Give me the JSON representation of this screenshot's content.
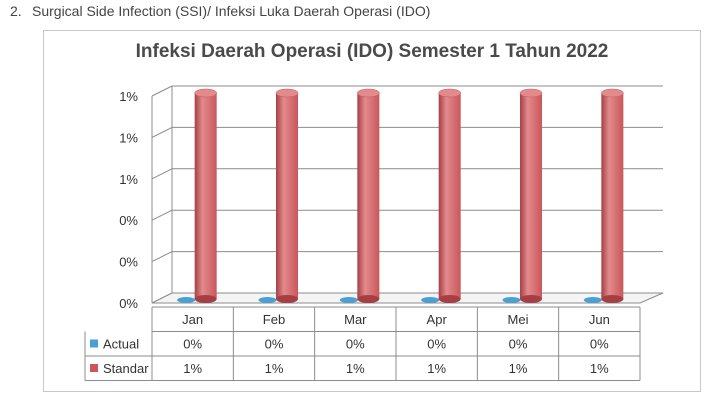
{
  "heading": {
    "number": "2.",
    "text": "Surgical Side Infection (SSI)/ Infeksi Luka Daerah Operasi (IDO)"
  },
  "colors": {
    "actual": "#4a9fd4",
    "standar": "#c9575b",
    "standar_light": "#e28a8c",
    "standar_dark": "#a53f44"
  },
  "chart_data": {
    "type": "bar",
    "title": "Infeksi Daerah Operasi (IDO) Semester 1 Tahun 2022",
    "categories": [
      "Jan",
      "Feb",
      "Mar",
      "Apr",
      "Mei",
      "Jun"
    ],
    "yticks": [
      "0%",
      "0%",
      "0%",
      "1%",
      "1%",
      "1%"
    ],
    "ylim": [
      0,
      1
    ],
    "grid": true,
    "series": [
      {
        "name": "Actual",
        "values": [
          0,
          0,
          0,
          0,
          0,
          0
        ],
        "labels": [
          "0%",
          "0%",
          "0%",
          "0%",
          "0%",
          "0%"
        ]
      },
      {
        "name": "Standar",
        "values": [
          1,
          1,
          1,
          1,
          1,
          1
        ],
        "labels": [
          "1%",
          "1%",
          "1%",
          "1%",
          "1%",
          "1%"
        ]
      }
    ]
  }
}
